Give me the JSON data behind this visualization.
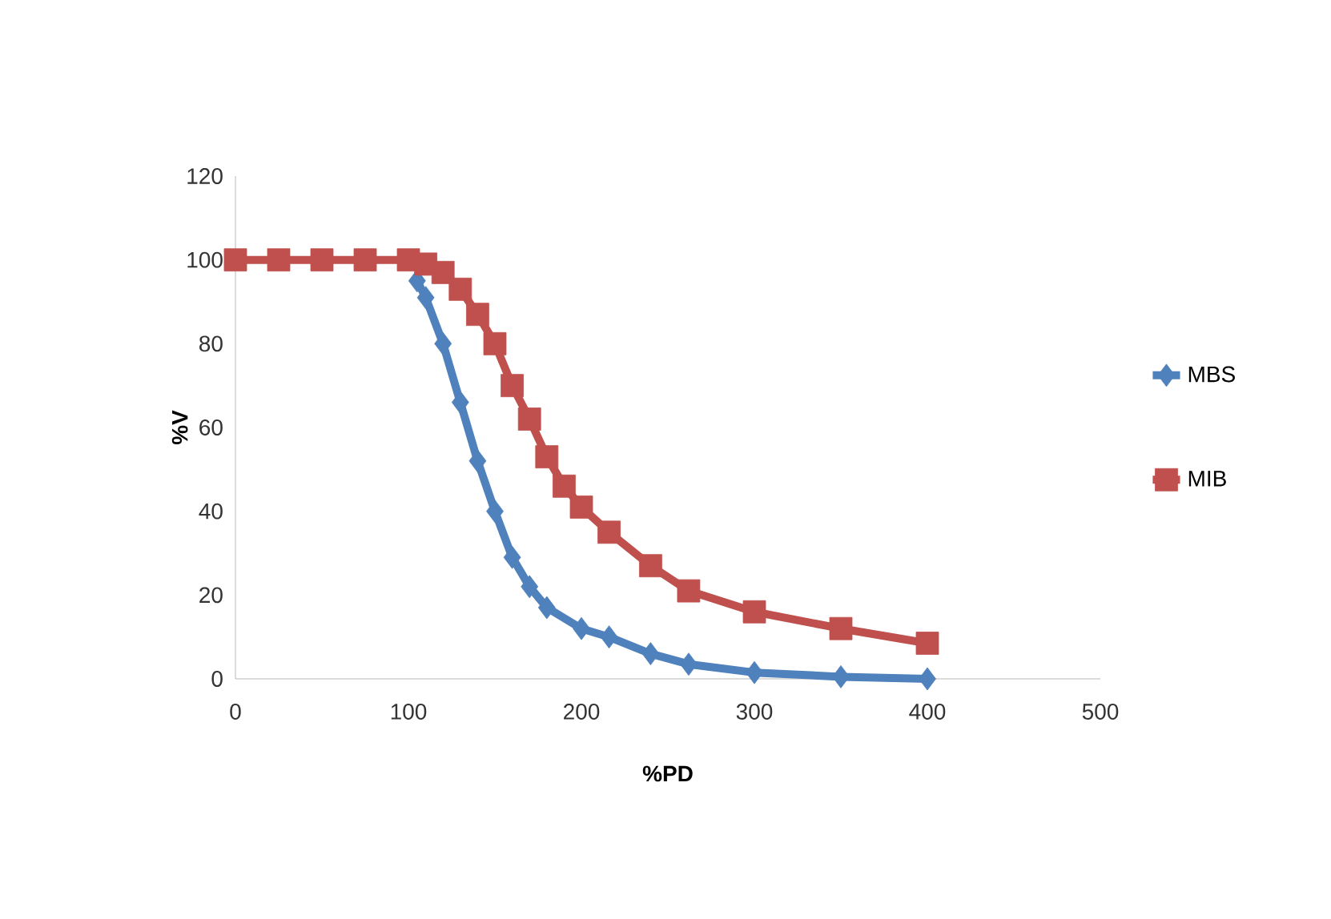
{
  "chart_data": {
    "type": "line",
    "xlabel": "%PD",
    "ylabel": "%V",
    "series": [
      {
        "name": "MBS",
        "color": "#4f81bd",
        "marker": "diamond",
        "x": [
          105,
          110,
          120,
          130,
          140,
          150,
          160,
          170,
          180,
          200,
          216,
          240,
          262,
          300,
          350,
          400
        ],
        "values": [
          95,
          91,
          80,
          66,
          52,
          40,
          29,
          22,
          17,
          12,
          10,
          6,
          3.5,
          1.5,
          0.5,
          0
        ]
      },
      {
        "name": "MIB",
        "color": "#c0504d",
        "marker": "square",
        "x": [
          0,
          25,
          50,
          75,
          100,
          110,
          120,
          130,
          140,
          150,
          160,
          170,
          180,
          190,
          200,
          216,
          240,
          262,
          300,
          350,
          400
        ],
        "values": [
          100,
          100,
          100,
          100,
          100,
          99,
          97,
          93,
          87,
          80,
          70,
          62,
          53,
          46,
          41,
          35,
          27,
          21,
          16,
          12,
          8.5
        ]
      }
    ],
    "xlim": [
      0,
      500
    ],
    "xticks": [
      0,
      100,
      200,
      300,
      400,
      500
    ],
    "ylim": [
      0,
      120
    ],
    "yticks": [
      0,
      20,
      40,
      60,
      80,
      100,
      120
    ],
    "grid": false,
    "legend": "right"
  }
}
